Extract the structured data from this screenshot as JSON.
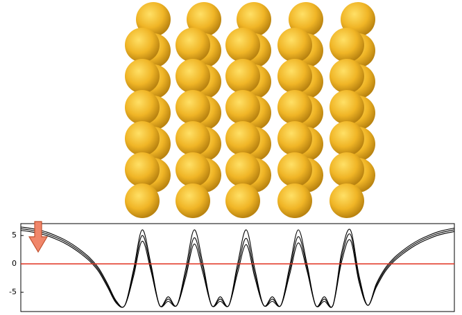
{
  "chart_data": {
    "type": "line",
    "categories": [
      null,
      null,
      null,
      null,
      null,
      null,
      null,
      null,
      null,
      null,
      null,
      null,
      null,
      null,
      null,
      null,
      null,
      null,
      null,
      null,
      null,
      null,
      null,
      null,
      null,
      null,
      null,
      null,
      null,
      null,
      null,
      null,
      null,
      null,
      null,
      null,
      null,
      null,
      null,
      null,
      null,
      null,
      null,
      null,
      null,
      null,
      null,
      null,
      null,
      null,
      null
    ],
    "series": [
      {
        "color": "#000000",
        "values": [
          6.5,
          6.3,
          6.0,
          5.6,
          5.0,
          4.3,
          3.4,
          2.3,
          1.0,
          -0.8,
          -3.5,
          -6.5,
          -7.3,
          -1.0,
          6.0,
          0.0,
          -7.3,
          -5.8,
          -7.3,
          -1.0,
          6.0,
          0.0,
          -7.3,
          -5.8,
          -7.3,
          0.0,
          6.0,
          -1.0,
          -7.3,
          -5.8,
          -7.3,
          -0.5,
          6.0,
          0.0,
          -7.3,
          -5.8,
          -7.3,
          2.0,
          6.0,
          -2.0,
          -7.3,
          -3.5,
          -0.8,
          1.0,
          2.3,
          3.4,
          4.3,
          5.0,
          5.6,
          6.0,
          6.3
        ]
      },
      {
        "color": "#000000",
        "values": [
          6.2,
          6.0,
          5.7,
          5.3,
          4.7,
          4.0,
          3.1,
          2.0,
          0.7,
          -1.1,
          -3.8,
          -6.7,
          -7.3,
          -1.6,
          5.0,
          -0.6,
          -7.3,
          -6.2,
          -7.3,
          -1.8,
          4.6,
          -0.8,
          -7.3,
          -6.2,
          -7.3,
          -0.8,
          4.5,
          -1.8,
          -7.3,
          -6.2,
          -7.3,
          -1.2,
          4.8,
          -0.6,
          -7.3,
          -6.2,
          -7.3,
          1.2,
          5.2,
          -2.6,
          -7.3,
          -3.8,
          -1.1,
          0.7,
          2.0,
          3.1,
          4.0,
          4.7,
          5.3,
          5.7,
          6.0
        ]
      },
      {
        "color": "#000000",
        "values": [
          5.9,
          5.7,
          5.4,
          5.0,
          4.4,
          3.7,
          2.8,
          1.7,
          0.4,
          -1.4,
          -4.1,
          -6.9,
          -7.3,
          -2.2,
          4.0,
          -1.2,
          -7.3,
          -6.6,
          -7.3,
          -2.5,
          3.5,
          -1.6,
          -7.3,
          -6.6,
          -7.3,
          -1.6,
          3.4,
          -2.5,
          -7.3,
          -6.6,
          -7.3,
          -1.9,
          3.7,
          -1.2,
          -7.3,
          -6.6,
          -7.3,
          0.4,
          4.2,
          -3.2,
          -7.3,
          -4.1,
          -1.4,
          0.4,
          1.7,
          2.8,
          3.7,
          4.4,
          5.0,
          5.4,
          5.7
        ]
      }
    ],
    "ylim": [
      -8.4,
      7.1
    ],
    "yticks": [
      5,
      0,
      -5
    ],
    "reference_line": {
      "value": 0,
      "color": "#e0301e"
    }
  }
}
